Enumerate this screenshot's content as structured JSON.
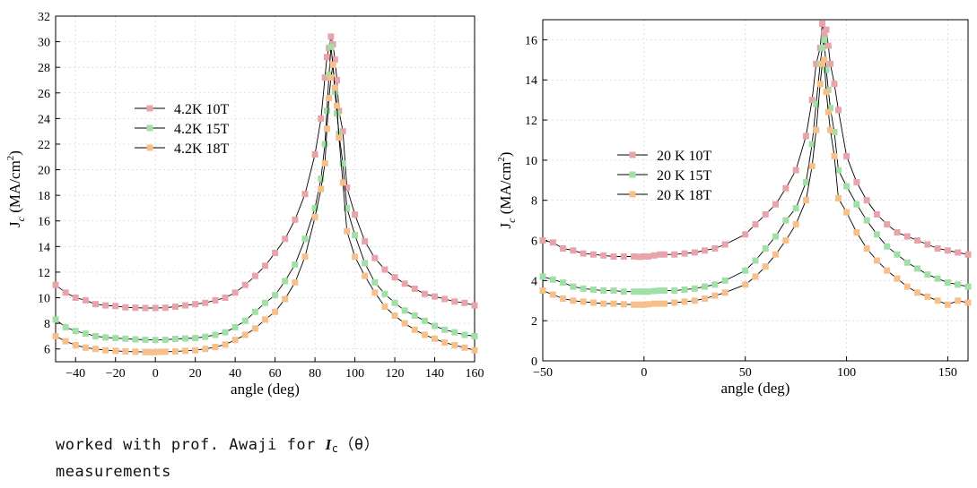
{
  "caption": {
    "line1_prefix": "worked with prof. Awaji for ",
    "symbol": "I",
    "subscript": "c",
    "line1_suffix": "（θ）",
    "line2": "measurements"
  },
  "chart_data": [
    {
      "type": "scatter-line",
      "xlabel": "angle (deg)",
      "ylabel": "J_c (MA/cm^2)",
      "xlim": [
        -50,
        160
      ],
      "ylim": [
        5,
        32
      ],
      "xticks": [
        -40,
        -20,
        0,
        20,
        40,
        60,
        80,
        100,
        120,
        140,
        160
      ],
      "xtick_labels": [
        "−40",
        "−20",
        "0",
        "20",
        "40",
        "60",
        "80",
        "100",
        "120",
        "140",
        "160"
      ],
      "yticks": [
        6,
        8,
        10,
        12,
        14,
        16,
        18,
        20,
        22,
        24,
        26,
        28,
        30,
        32
      ],
      "legend_position": "upper-left",
      "series": [
        {
          "name": "4.2K 10T",
          "color": "#e8a3ab",
          "x": [
            -50,
            -45,
            -40,
            -35,
            -30,
            -25,
            -20,
            -15,
            -10,
            -5,
            0,
            5,
            10,
            15,
            20,
            25,
            30,
            35,
            40,
            45,
            50,
            55,
            60,
            65,
            70,
            75,
            80,
            83,
            85,
            86,
            87,
            88,
            89,
            90,
            91,
            92,
            94,
            96,
            100,
            105,
            110,
            115,
            120,
            125,
            130,
            135,
            140,
            145,
            150,
            155,
            160
          ],
          "y": [
            11.0,
            10.4,
            10.0,
            9.8,
            9.5,
            9.4,
            9.35,
            9.25,
            9.22,
            9.2,
            9.2,
            9.22,
            9.3,
            9.4,
            9.5,
            9.6,
            9.8,
            10.0,
            10.4,
            11.0,
            11.7,
            12.5,
            13.5,
            14.6,
            16.1,
            18.1,
            21.2,
            24.0,
            27.2,
            28.8,
            29.5,
            30.4,
            29.8,
            28.6,
            27.0,
            24.6,
            23.0,
            18.6,
            16.5,
            14.4,
            13.1,
            12.2,
            11.6,
            11.1,
            10.7,
            10.3,
            10.1,
            9.9,
            9.7,
            9.6,
            9.4
          ]
        },
        {
          "name": "4.2K 15T",
          "color": "#a0dfa6",
          "x": [
            -50,
            -45,
            -40,
            -35,
            -30,
            -25,
            -20,
            -15,
            -10,
            -5,
            0,
            5,
            10,
            15,
            20,
            25,
            30,
            35,
            40,
            45,
            50,
            55,
            60,
            65,
            70,
            75,
            80,
            83,
            85,
            86,
            87,
            88,
            89,
            90,
            91,
            92,
            94,
            96,
            100,
            105,
            110,
            115,
            120,
            125,
            130,
            135,
            140,
            145,
            150,
            155,
            160
          ],
          "y": [
            8.3,
            7.7,
            7.4,
            7.2,
            7.0,
            6.9,
            6.85,
            6.8,
            6.75,
            6.72,
            6.7,
            6.72,
            6.78,
            6.82,
            6.85,
            6.95,
            7.1,
            7.3,
            7.7,
            8.2,
            8.9,
            9.6,
            10.2,
            11.3,
            12.6,
            14.6,
            17.0,
            19.3,
            22.0,
            24.6,
            27.4,
            29.6,
            28.2,
            26.1,
            24.4,
            22.8,
            20.5,
            17.0,
            14.9,
            12.7,
            11.2,
            10.3,
            9.6,
            9.0,
            8.6,
            8.2,
            7.8,
            7.5,
            7.3,
            7.1,
            7.0
          ]
        },
        {
          "name": "4.2K 18T",
          "color": "#f7c08a",
          "x": [
            -50,
            -45,
            -40,
            -35,
            -30,
            -25,
            -20,
            -15,
            -10,
            -5,
            -3,
            -1,
            1,
            3,
            5,
            10,
            15,
            20,
            25,
            30,
            35,
            40,
            45,
            50,
            55,
            60,
            65,
            70,
            75,
            80,
            83,
            85,
            86,
            87,
            88,
            89,
            90,
            91,
            92,
            94,
            96,
            100,
            105,
            110,
            115,
            120,
            125,
            130,
            135,
            140,
            145,
            150,
            155,
            160
          ],
          "y": [
            7.0,
            6.6,
            6.3,
            6.1,
            6.0,
            5.9,
            5.85,
            5.8,
            5.78,
            5.76,
            5.75,
            5.75,
            5.76,
            5.77,
            5.78,
            5.8,
            5.85,
            5.9,
            6.0,
            6.15,
            6.35,
            6.7,
            7.1,
            7.6,
            8.3,
            8.9,
            9.9,
            11.2,
            13.2,
            16.3,
            18.5,
            20.5,
            23.2,
            25.6,
            27.2,
            28.2,
            26.4,
            25.0,
            22.5,
            19.0,
            15.2,
            13.2,
            11.7,
            10.4,
            9.3,
            8.6,
            8.0,
            7.5,
            7.1,
            6.8,
            6.5,
            6.3,
            6.1,
            5.9
          ]
        }
      ]
    },
    {
      "type": "scatter-line",
      "xlabel": "angle (deg)",
      "ylabel": "J_c (MA/cm^2)",
      "xlim": [
        -50,
        160
      ],
      "ylim": [
        0,
        17
      ],
      "xticks": [
        -50,
        0,
        50,
        100,
        150
      ],
      "xtick_labels": [
        "−50",
        "0",
        "50",
        "100",
        "150"
      ],
      "yticks": [
        0,
        2,
        4,
        6,
        8,
        10,
        12,
        14,
        16
      ],
      "legend_position": "middle-left",
      "series": [
        {
          "name": "20 K 10T",
          "color": "#e8a3ab",
          "x": [
            -50,
            -45,
            -40,
            -35,
            -30,
            -25,
            -20,
            -15,
            -10,
            -5,
            -2,
            0,
            2,
            5,
            8,
            10,
            15,
            20,
            25,
            30,
            35,
            40,
            50,
            55,
            60,
            65,
            70,
            75,
            80,
            83,
            85,
            87,
            88,
            89,
            90,
            91,
            92,
            94,
            96,
            100,
            105,
            110,
            115,
            120,
            125,
            130,
            135,
            140,
            145,
            150,
            155,
            160
          ],
          "y": [
            6.0,
            5.9,
            5.6,
            5.5,
            5.35,
            5.3,
            5.25,
            5.2,
            5.2,
            5.2,
            5.18,
            5.2,
            5.2,
            5.25,
            5.3,
            5.3,
            5.3,
            5.35,
            5.4,
            5.5,
            5.6,
            5.8,
            6.3,
            6.8,
            7.3,
            7.8,
            8.6,
            9.5,
            11.2,
            13.0,
            14.8,
            15.6,
            16.8,
            16.3,
            16.5,
            15.7,
            14.8,
            13.8,
            12.5,
            10.2,
            8.9,
            8.0,
            7.3,
            6.8,
            6.4,
            6.2,
            6.0,
            5.8,
            5.6,
            5.5,
            5.4,
            5.3
          ]
        },
        {
          "name": "20 K 15T",
          "color": "#a0dfa6",
          "x": [
            -50,
            -45,
            -40,
            -35,
            -30,
            -25,
            -20,
            -15,
            -10,
            -5,
            -2,
            0,
            2,
            5,
            8,
            10,
            15,
            20,
            25,
            30,
            35,
            40,
            50,
            55,
            60,
            65,
            70,
            75,
            80,
            83,
            85,
            87,
            88,
            89,
            90,
            91,
            92,
            94,
            96,
            100,
            105,
            110,
            115,
            120,
            125,
            130,
            135,
            140,
            145,
            150,
            155,
            160
          ],
          "y": [
            4.2,
            4.05,
            3.9,
            3.7,
            3.6,
            3.55,
            3.5,
            3.5,
            3.45,
            3.45,
            3.45,
            3.45,
            3.45,
            3.48,
            3.5,
            3.5,
            3.5,
            3.55,
            3.6,
            3.7,
            3.8,
            4.0,
            4.5,
            5.0,
            5.6,
            6.2,
            7.0,
            7.6,
            8.9,
            10.8,
            12.8,
            14.8,
            15.6,
            16.0,
            14.5,
            13.5,
            12.6,
            11.4,
            9.5,
            8.7,
            7.8,
            7.0,
            6.3,
            5.7,
            5.3,
            4.9,
            4.6,
            4.3,
            4.1,
            3.9,
            3.8,
            3.7
          ]
        },
        {
          "name": "20 K 18T",
          "color": "#f7c08a",
          "x": [
            -50,
            -45,
            -40,
            -35,
            -30,
            -25,
            -20,
            -15,
            -10,
            -5,
            -2,
            0,
            2,
            5,
            8,
            10,
            15,
            20,
            25,
            30,
            35,
            40,
            50,
            55,
            60,
            65,
            70,
            75,
            80,
            83,
            85,
            87,
            88,
            89,
            90,
            91,
            92,
            94,
            96,
            100,
            105,
            110,
            115,
            120,
            125,
            130,
            135,
            140,
            145,
            150,
            155,
            160
          ],
          "y": [
            3.5,
            3.3,
            3.1,
            3.0,
            2.95,
            2.9,
            2.85,
            2.85,
            2.82,
            2.8,
            2.8,
            2.8,
            2.82,
            2.85,
            2.85,
            2.85,
            2.9,
            2.95,
            3.0,
            3.1,
            3.25,
            3.4,
            3.8,
            4.2,
            4.7,
            5.3,
            6.0,
            6.8,
            8.0,
            9.7,
            11.5,
            13.8,
            14.8,
            15.0,
            13.4,
            12.4,
            11.5,
            10.2,
            8.1,
            7.4,
            6.4,
            5.6,
            5.0,
            4.5,
            4.1,
            3.7,
            3.4,
            3.2,
            3.0,
            2.8,
            3.0,
            2.9
          ]
        }
      ]
    }
  ]
}
